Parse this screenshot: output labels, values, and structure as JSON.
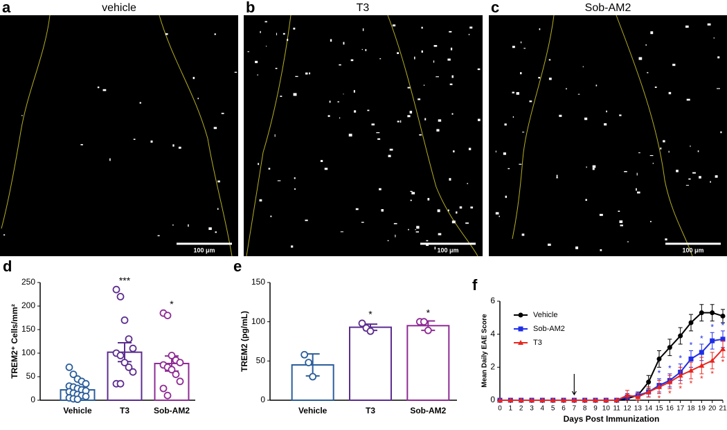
{
  "panels": [
    {
      "label": "a",
      "title": "vehicle",
      "scale": "100 μm"
    },
    {
      "label": "b",
      "title": "T3",
      "scale": "100 μm"
    },
    {
      "label": "c",
      "title": "Sob-AM2",
      "scale": "100 μm"
    }
  ],
  "chart_data": [
    {
      "type": "bar",
      "label": "d",
      "ylabel": "TREM2⁺ Cells/mm²",
      "categories": [
        "Vehicle",
        "T3",
        "Sob-AM2"
      ],
      "values": [
        22,
        102,
        78
      ],
      "errors": [
        5,
        20,
        16
      ],
      "colors": [
        "#2a5d9a",
        "#5b2c8f",
        "#8e2a94"
      ],
      "significance": [
        null,
        "***",
        "*"
      ],
      "points": [
        [
          70,
          55,
          45,
          40,
          35,
          30,
          28,
          25,
          22,
          20,
          18,
          15,
          12,
          10,
          8,
          5,
          3,
          2
        ],
        [
          235,
          220,
          170,
          130,
          110,
          100,
          95,
          80,
          70,
          60,
          35,
          35
        ],
        [
          185,
          180,
          95,
          85,
          80,
          75,
          70,
          65,
          55,
          40,
          25,
          10
        ]
      ],
      "ylim": [
        0,
        250
      ],
      "yticks": [
        0,
        50,
        100,
        150,
        200,
        250
      ]
    },
    {
      "type": "bar",
      "label": "e",
      "ylabel": "TREM2 (pg/mL)",
      "categories": [
        "Vehicle",
        "T3",
        "Sob-AM2"
      ],
      "values": [
        45,
        93,
        95
      ],
      "errors": [
        14,
        4,
        6
      ],
      "colors": [
        "#2a5d9a",
        "#5b2c8f",
        "#8e2a94"
      ],
      "significance": [
        null,
        "*",
        "*"
      ],
      "points": [
        [
          58,
          48,
          30
        ],
        [
          98,
          92,
          88
        ],
        [
          100,
          100,
          89
        ]
      ],
      "ylim": [
        0,
        150
      ],
      "yticks": [
        0,
        50,
        100,
        150
      ]
    },
    {
      "type": "line",
      "label": "f",
      "xlabel": "Days Post Immunization",
      "ylabel": "Mean Daily EAE Score",
      "arrow_day": 7,
      "legend": "upper left",
      "x": [
        0,
        1,
        2,
        3,
        4,
        5,
        6,
        7,
        8,
        9,
        10,
        11,
        12,
        13,
        14,
        15,
        16,
        17,
        18,
        19,
        20,
        21
      ],
      "series": [
        {
          "name": "Vehicle",
          "color": "#000000",
          "marker": "circle",
          "values": [
            0,
            0,
            0,
            0,
            0,
            0,
            0,
            0,
            0,
            0,
            0,
            0,
            0.1,
            0.3,
            1.1,
            2.5,
            3.2,
            3.9,
            4.7,
            5.3,
            5.3,
            5.1
          ],
          "errors": [
            0,
            0,
            0,
            0,
            0,
            0,
            0,
            0,
            0,
            0,
            0,
            0,
            0.1,
            0.2,
            0.4,
            0.5,
            0.5,
            0.5,
            0.5,
            0.5,
            0.5,
            0.4
          ],
          "marks": [
            null,
            null,
            null,
            null,
            null,
            null,
            null,
            null,
            null,
            null,
            null,
            null,
            null,
            null,
            null,
            null,
            null,
            null,
            null,
            null,
            null,
            null
          ]
        },
        {
          "name": "Sob-AM2",
          "color": "#1f2ee8",
          "marker": "square",
          "values": [
            0,
            0,
            0,
            0,
            0,
            0,
            0,
            0,
            0,
            0,
            0,
            0,
            0.2,
            0.3,
            0.5,
            0.9,
            1.2,
            1.7,
            2.5,
            2.9,
            3.6,
            3.7
          ],
          "errors": [
            0,
            0,
            0,
            0,
            0,
            0,
            0,
            0,
            0,
            0,
            0,
            0,
            0.2,
            0.2,
            0.3,
            0.4,
            0.4,
            0.5,
            0.5,
            0.5,
            0.5,
            0.5
          ],
          "marks": [
            null,
            null,
            null,
            null,
            null,
            null,
            null,
            null,
            null,
            null,
            null,
            null,
            null,
            null,
            null,
            "*",
            "*",
            "*",
            "*",
            "*",
            "*",
            "*"
          ]
        },
        {
          "name": "T3",
          "color": "#e8261f",
          "marker": "triangle",
          "values": [
            0,
            0,
            0,
            0,
            0,
            0,
            0,
            0,
            0,
            0,
            0,
            0,
            0.3,
            0.2,
            0.5,
            0.8,
            1.1,
            1.5,
            1.8,
            2.1,
            2.4,
            3.1
          ],
          "errors": [
            0,
            0,
            0,
            0,
            0,
            0,
            0,
            0,
            0,
            0,
            0,
            0,
            0.3,
            0.2,
            0.3,
            0.4,
            0.4,
            0.5,
            0.5,
            0.5,
            0.5,
            0.5
          ],
          "marks": [
            null,
            null,
            null,
            null,
            null,
            null,
            null,
            null,
            null,
            null,
            null,
            null,
            null,
            null,
            null,
            "*",
            "*",
            "*",
            "*",
            "*",
            "*",
            "*"
          ]
        }
      ],
      "xlim": [
        0,
        21
      ],
      "xticks": [
        0,
        1,
        2,
        3,
        4,
        5,
        6,
        7,
        8,
        9,
        10,
        11,
        12,
        13,
        14,
        15,
        16,
        17,
        18,
        19,
        20,
        21
      ],
      "ylim": [
        0,
        6
      ],
      "yticks": [
        0,
        2,
        4,
        6
      ]
    }
  ]
}
